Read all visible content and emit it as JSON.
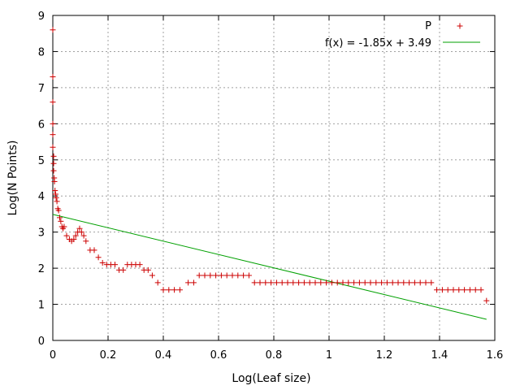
{
  "chart_data": {
    "type": "scatter",
    "title": "",
    "xlabel": "Log(Leaf size)",
    "ylabel": "Log(N Points)",
    "xlim": [
      0,
      1.6
    ],
    "ylim": [
      0,
      9
    ],
    "x_ticks": [
      "0",
      "0.2",
      "0.4",
      "0.6",
      "0.8",
      "1",
      "1.2",
      "1.4",
      "1.6"
    ],
    "y_ticks": [
      "0",
      "1",
      "2",
      "3",
      "4",
      "5",
      "6",
      "7",
      "8",
      "9"
    ],
    "grid": true,
    "legend_position": "top-right",
    "series": [
      {
        "name": "P",
        "type": "scatter",
        "marker": "plus",
        "color": "#cc0000",
        "points": [
          [
            0.0,
            8.6
          ],
          [
            0.0,
            7.3
          ],
          [
            0.0,
            6.6
          ],
          [
            0.0,
            6.0
          ],
          [
            0.0,
            5.7
          ],
          [
            0.0,
            5.35
          ],
          [
            0.003,
            5.1
          ],
          [
            0.003,
            4.9
          ],
          [
            0.003,
            4.7
          ],
          [
            0.005,
            4.5
          ],
          [
            0.006,
            4.4
          ],
          [
            0.008,
            4.15
          ],
          [
            0.01,
            4.05
          ],
          [
            0.012,
            3.95
          ],
          [
            0.015,
            3.85
          ],
          [
            0.018,
            3.65
          ],
          [
            0.021,
            3.6
          ],
          [
            0.025,
            3.4
          ],
          [
            0.029,
            3.3
          ],
          [
            0.033,
            3.15
          ],
          [
            0.037,
            3.1
          ],
          [
            0.041,
            3.15
          ],
          [
            0.05,
            2.9
          ],
          [
            0.06,
            2.8
          ],
          [
            0.068,
            2.75
          ],
          [
            0.076,
            2.8
          ],
          [
            0.083,
            2.9
          ],
          [
            0.09,
            3.0
          ],
          [
            0.097,
            3.1
          ],
          [
            0.104,
            3.0
          ],
          [
            0.112,
            2.9
          ],
          [
            0.12,
            2.75
          ],
          [
            0.135,
            2.5
          ],
          [
            0.15,
            2.5
          ],
          [
            0.165,
            2.3
          ],
          [
            0.18,
            2.15
          ],
          [
            0.195,
            2.1
          ],
          [
            0.21,
            2.1
          ],
          [
            0.225,
            2.1
          ],
          [
            0.24,
            1.95
          ],
          [
            0.255,
            1.95
          ],
          [
            0.27,
            2.1
          ],
          [
            0.285,
            2.1
          ],
          [
            0.3,
            2.1
          ],
          [
            0.315,
            2.1
          ],
          [
            0.33,
            1.95
          ],
          [
            0.345,
            1.95
          ],
          [
            0.36,
            1.8
          ],
          [
            0.38,
            1.6
          ],
          [
            0.4,
            1.4
          ],
          [
            0.42,
            1.4
          ],
          [
            0.44,
            1.4
          ],
          [
            0.46,
            1.4
          ],
          [
            0.49,
            1.6
          ],
          [
            0.51,
            1.6
          ],
          [
            0.53,
            1.8
          ],
          [
            0.55,
            1.8
          ],
          [
            0.57,
            1.8
          ],
          [
            0.59,
            1.8
          ],
          [
            0.61,
            1.8
          ],
          [
            0.63,
            1.8
          ],
          [
            0.65,
            1.8
          ],
          [
            0.67,
            1.8
          ],
          [
            0.69,
            1.8
          ],
          [
            0.71,
            1.8
          ],
          [
            0.73,
            1.6
          ],
          [
            0.75,
            1.6
          ],
          [
            0.77,
            1.6
          ],
          [
            0.79,
            1.6
          ],
          [
            0.81,
            1.6
          ],
          [
            0.83,
            1.6
          ],
          [
            0.85,
            1.6
          ],
          [
            0.87,
            1.6
          ],
          [
            0.89,
            1.6
          ],
          [
            0.91,
            1.6
          ],
          [
            0.93,
            1.6
          ],
          [
            0.95,
            1.6
          ],
          [
            0.97,
            1.6
          ],
          [
            0.99,
            1.6
          ],
          [
            1.01,
            1.6
          ],
          [
            1.03,
            1.6
          ],
          [
            1.05,
            1.6
          ],
          [
            1.07,
            1.6
          ],
          [
            1.09,
            1.6
          ],
          [
            1.11,
            1.6
          ],
          [
            1.13,
            1.6
          ],
          [
            1.15,
            1.6
          ],
          [
            1.17,
            1.6
          ],
          [
            1.19,
            1.6
          ],
          [
            1.21,
            1.6
          ],
          [
            1.23,
            1.6
          ],
          [
            1.25,
            1.6
          ],
          [
            1.27,
            1.6
          ],
          [
            1.29,
            1.6
          ],
          [
            1.31,
            1.6
          ],
          [
            1.33,
            1.6
          ],
          [
            1.35,
            1.6
          ],
          [
            1.37,
            1.6
          ],
          [
            1.39,
            1.4
          ],
          [
            1.41,
            1.4
          ],
          [
            1.43,
            1.4
          ],
          [
            1.45,
            1.4
          ],
          [
            1.47,
            1.4
          ],
          [
            1.49,
            1.4
          ],
          [
            1.51,
            1.4
          ],
          [
            1.53,
            1.4
          ],
          [
            1.55,
            1.4
          ],
          [
            1.57,
            1.1
          ]
        ]
      },
      {
        "name": "f(x) = -1.85x + 3.49",
        "type": "line",
        "color": "#00a000",
        "slope": -1.85,
        "intercept": 3.49,
        "x_range": [
          0,
          1.57
        ]
      }
    ]
  }
}
